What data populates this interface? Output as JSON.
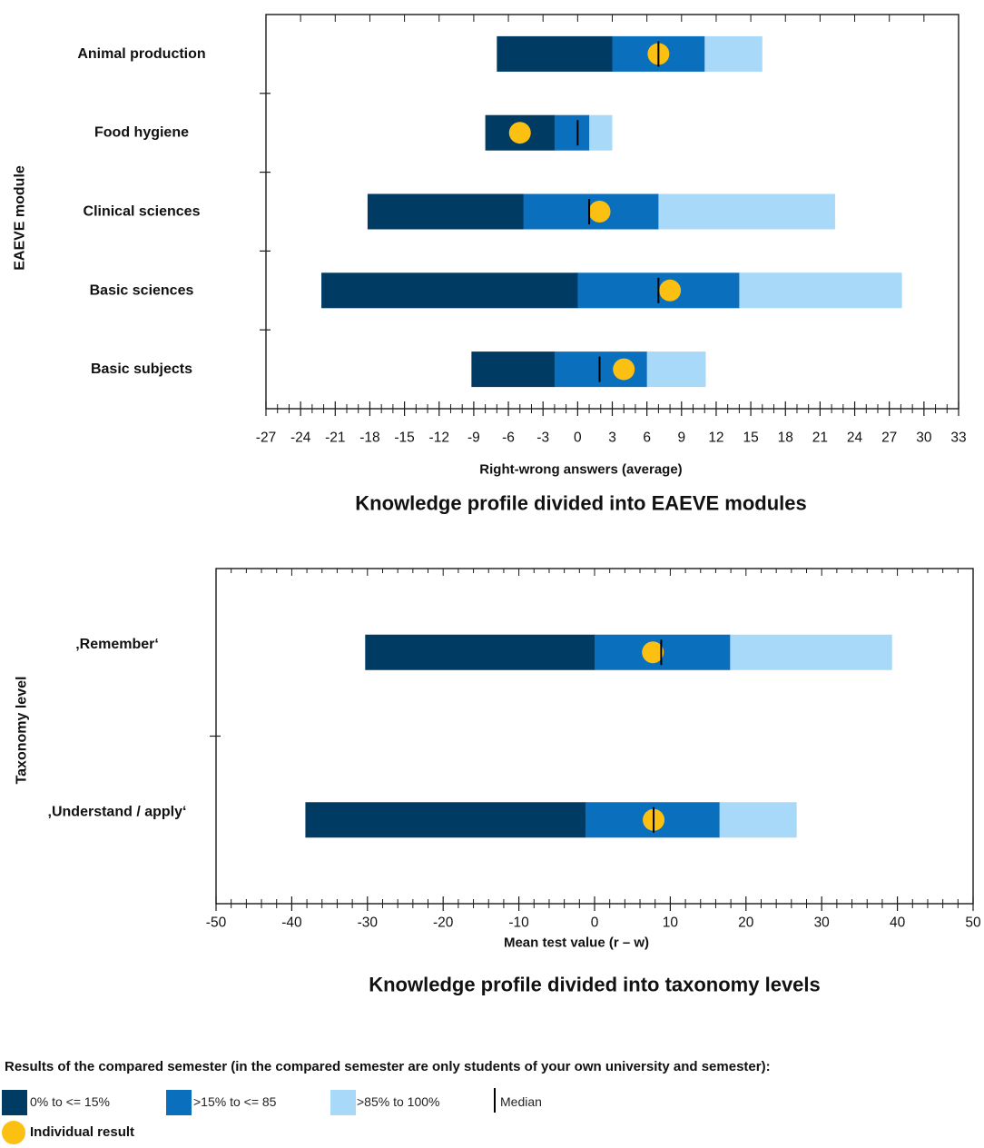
{
  "chart_data": [
    {
      "type": "bar",
      "title": "Knowledge profile divided into EAEVE modules",
      "xlabel": "Right-wrong answers (average)",
      "ylabel": "EAEVE module",
      "xlim": [
        -27,
        33
      ],
      "x_ticks": [
        -27,
        -24,
        -21,
        -18,
        -15,
        -12,
        -9,
        -6,
        -3,
        0,
        3,
        6,
        9,
        12,
        15,
        18,
        21,
        24,
        27,
        30,
        33
      ],
      "categories": [
        "Animal production",
        "Food hygiene",
        "Clinical sciences",
        "Basic sciences",
        "Basic subjects"
      ],
      "segments": {
        "low": [
          [
            -7,
            3
          ],
          [
            -8,
            -2
          ],
          [
            -18.2,
            -4.7
          ],
          [
            -22.2,
            0
          ],
          [
            -9.2,
            -2
          ]
        ],
        "mid": [
          [
            3,
            11
          ],
          [
            -2,
            1
          ],
          [
            -4.7,
            7
          ],
          [
            0,
            14
          ],
          [
            -2,
            6
          ]
        ],
        "high": [
          [
            11,
            16
          ],
          [
            1,
            3
          ],
          [
            7,
            22.3
          ],
          [
            14,
            28.1
          ],
          [
            6,
            11.1
          ]
        ]
      },
      "median": [
        7,
        0,
        1,
        7,
        1.9
      ],
      "individual_result": [
        7,
        -5,
        1.9,
        8,
        4
      ]
    },
    {
      "type": "bar",
      "title": "Knowledge profile divided into taxonomy levels",
      "xlabel": "Mean test value (r – w)",
      "ylabel": "Taxonomy level",
      "xlim": [
        -50,
        50
      ],
      "x_ticks": [
        -50,
        -40,
        -30,
        -20,
        -10,
        0,
        10,
        20,
        30,
        40,
        50
      ],
      "categories": [
        "‚Remember‘",
        "‚Understand / apply‘"
      ],
      "segments": {
        "low": [
          [
            -30.3,
            0
          ],
          [
            -38.2,
            -1.2
          ]
        ],
        "mid": [
          [
            0,
            17.9
          ],
          [
            -1.2,
            16.5
          ]
        ],
        "high": [
          [
            17.9,
            39.3
          ],
          [
            16.5,
            26.7
          ]
        ]
      },
      "median": [
        8.8,
        7.8
      ],
      "individual_result": [
        7.7,
        7.8
      ]
    }
  ],
  "legend": {
    "heading": "Results of the compared semester (in the compared semester are only students of your own university and semester):",
    "low": {
      "label": "0% to <= 15%",
      "color": "#003b64"
    },
    "mid": {
      "label": ">15% to <= 85",
      "color": "#0a6fbd"
    },
    "high": {
      "label": ">85% to 100%",
      "color": "#a9d9f8"
    },
    "median": {
      "label": "Median",
      "color": "#000000"
    },
    "individual": {
      "label": "Individual result",
      "color": "#fbc012"
    }
  }
}
